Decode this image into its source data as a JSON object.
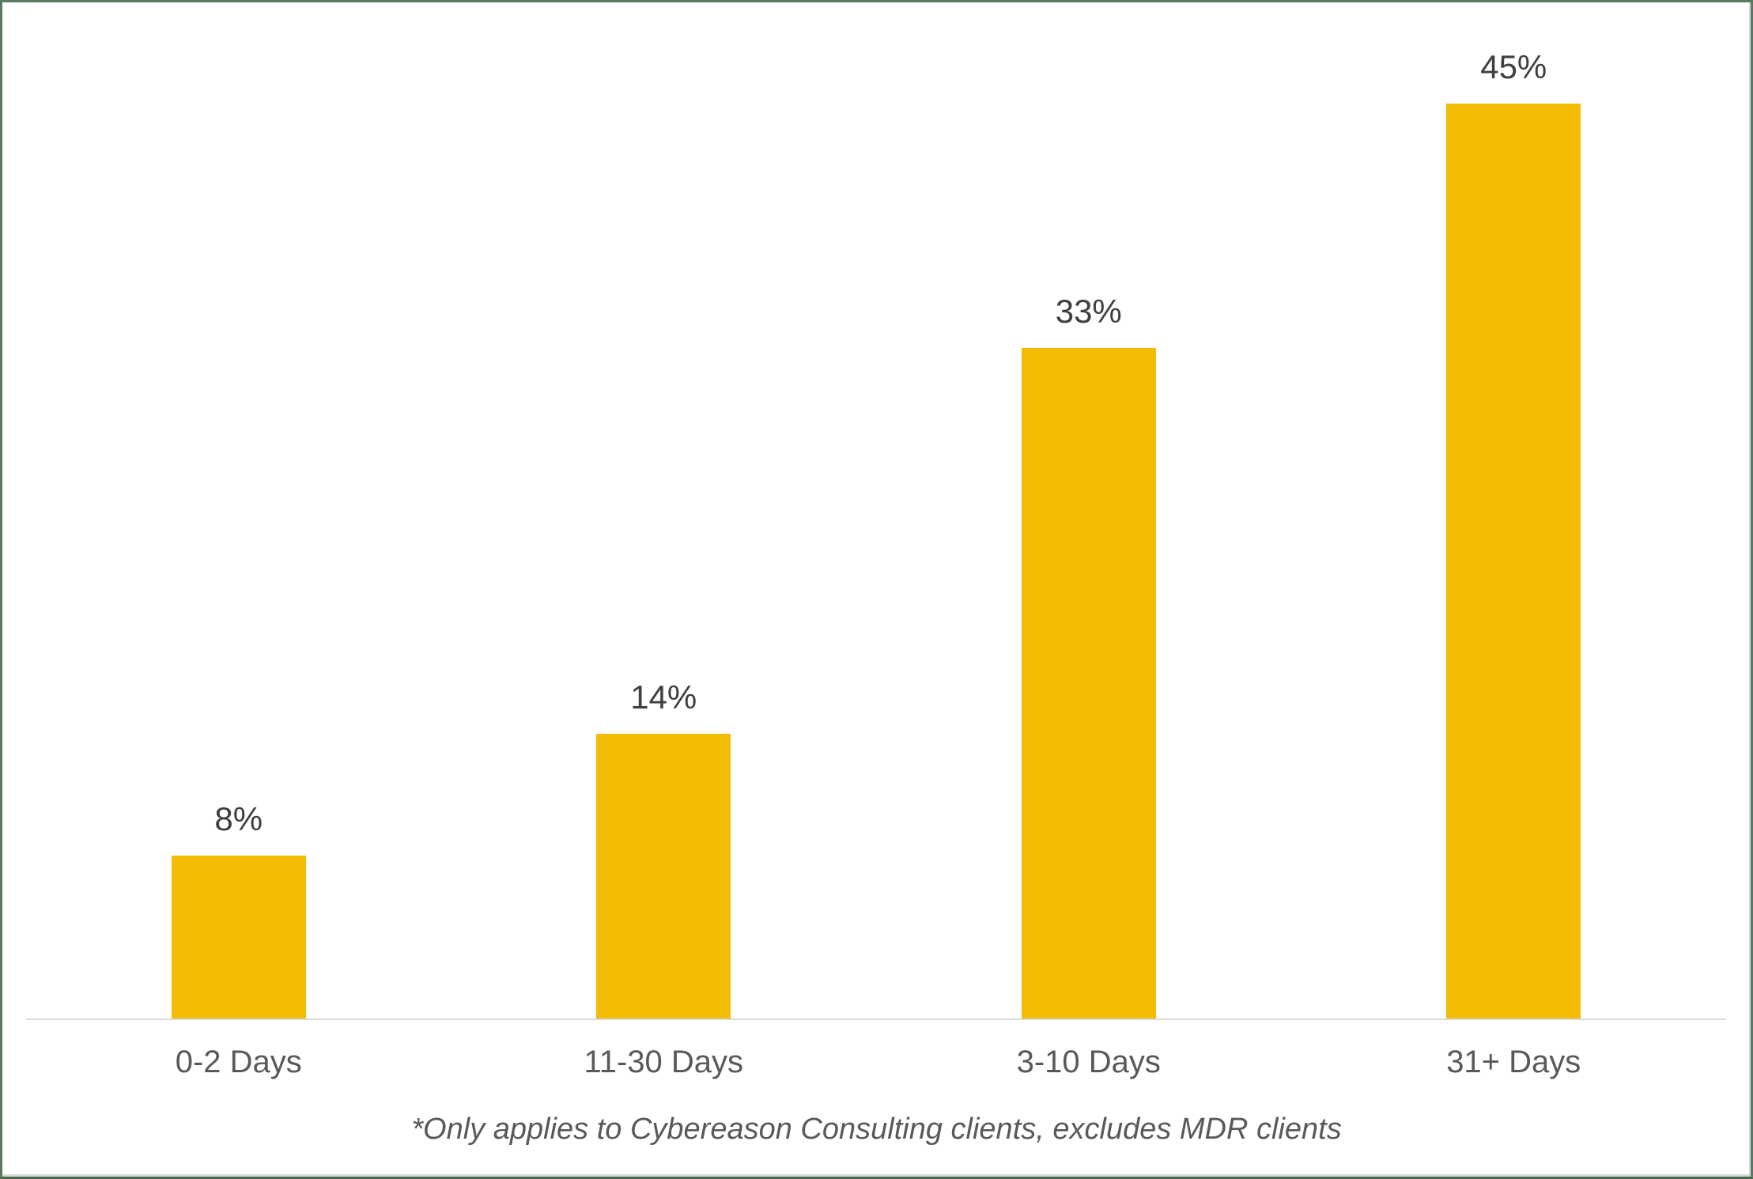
{
  "chart_data": {
    "type": "bar",
    "categories": [
      "0-2 Days",
      "11-30 Days",
      "3-10 Days",
      "31+ Days"
    ],
    "values": [
      8,
      14,
      33,
      45
    ],
    "value_labels": [
      "8%",
      "14%",
      "33%",
      "45%"
    ],
    "title": "",
    "xlabel": "",
    "ylabel": "",
    "ylim": [
      0,
      50
    ],
    "grid": false,
    "legend": false,
    "layout_hints": {
      "value_labels_position": "above-bars",
      "axis_line": "bottom-only"
    },
    "footnote": "*Only applies to Cybereason Consulting clients, excludes MDR clients"
  },
  "colors": {
    "bar": "#F4BB05",
    "value_label": "#3F3F3F",
    "category_label": "#595959",
    "footnote": "#595959",
    "axis_line": "#D9D9D9",
    "frame_border": "#587A5E",
    "background": "#FFFFFF"
  }
}
